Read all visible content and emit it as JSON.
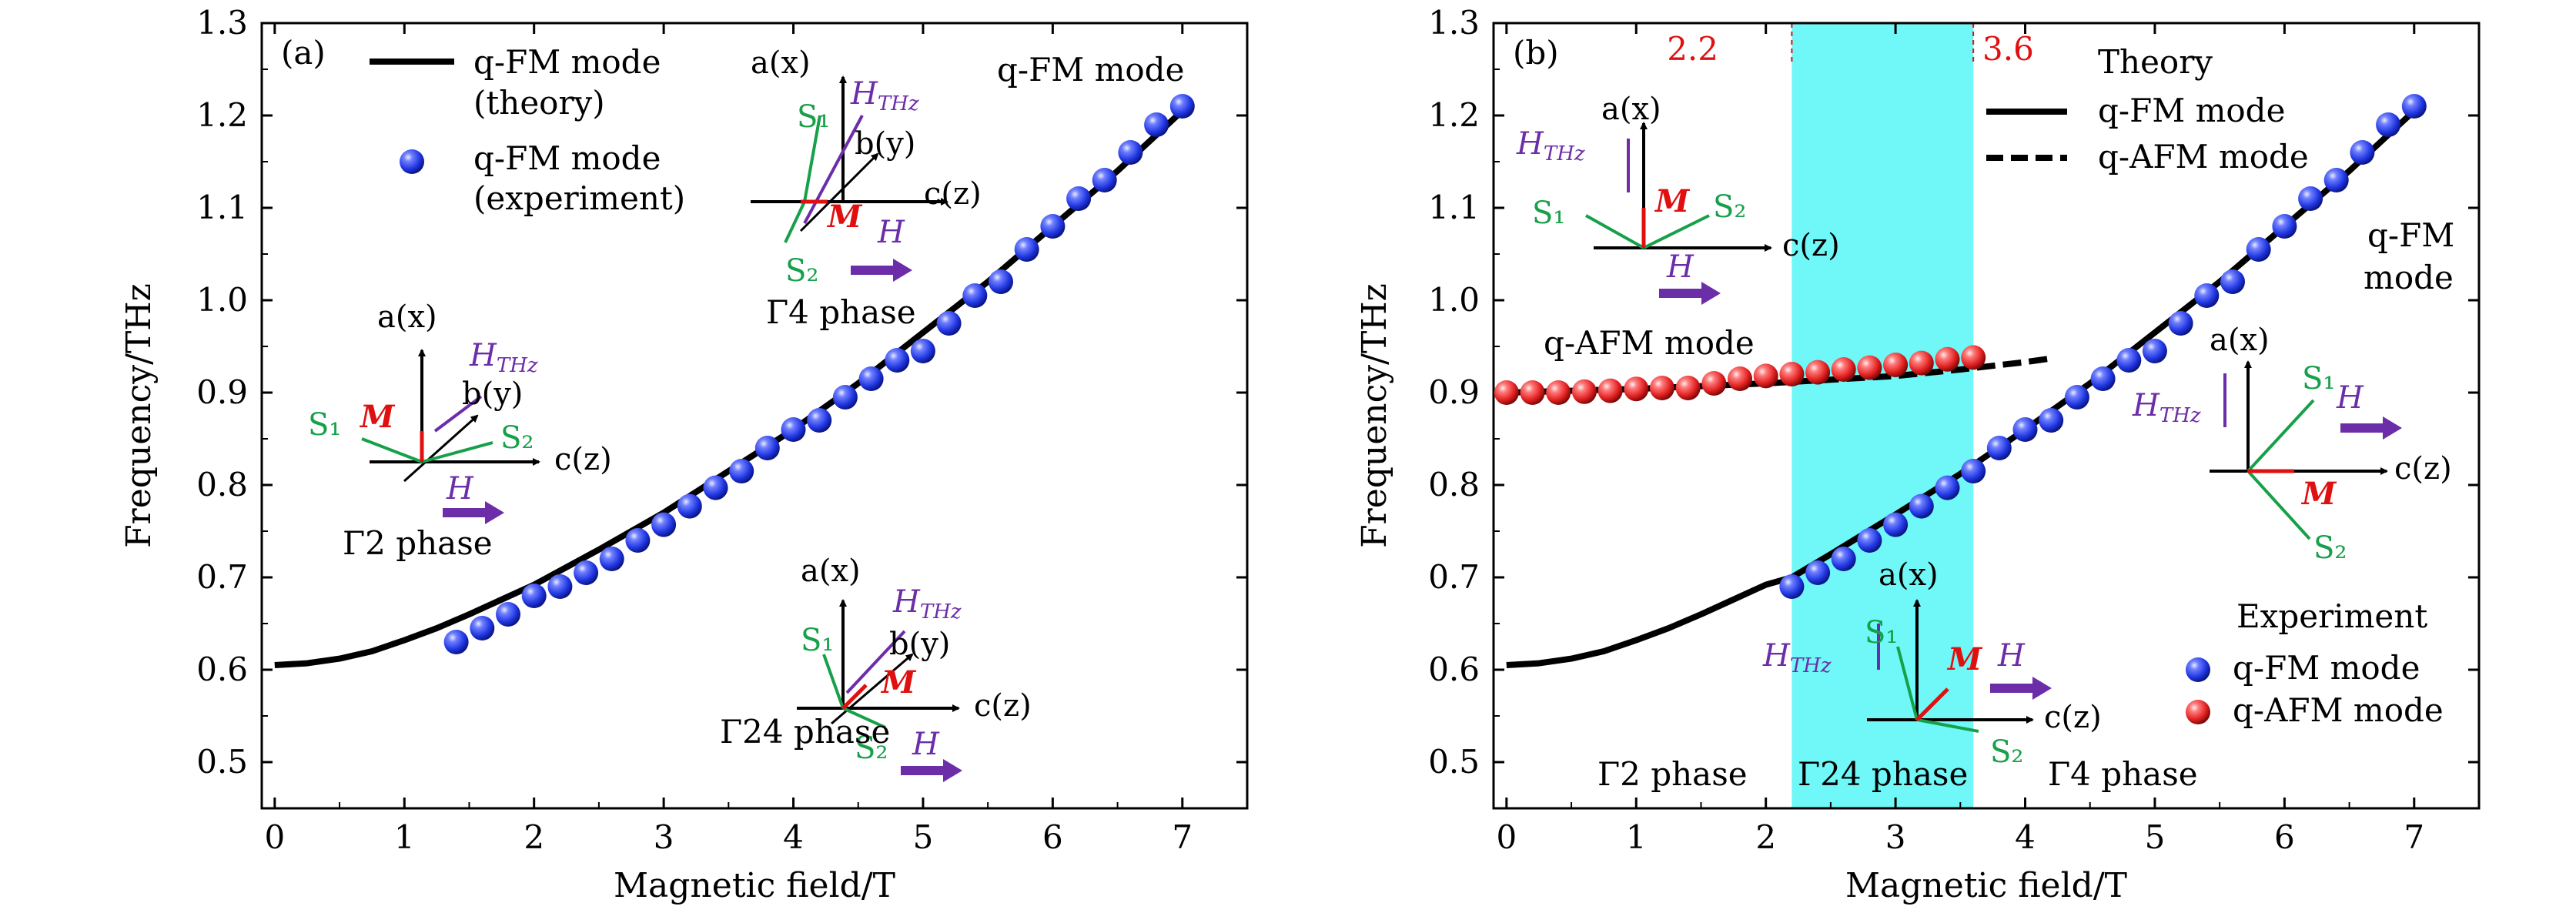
{
  "colors": {
    "theory": "#000000",
    "fm_marker": "#1f35e0",
    "afm_marker": "#e01f1f",
    "highlight": "#70f7f7",
    "green": "#17a04a",
    "purple": "#6c2ea8",
    "red": "#e01010"
  },
  "chart_data": [
    {
      "type": "scatter",
      "panel_label": "(a)",
      "xlabel": "Magnetic field/T",
      "ylabel": "Frequency/THz",
      "xlim": [
        -0.1,
        7.5
      ],
      "ylim": [
        0.45,
        1.3
      ],
      "xticks": [
        "0",
        "1",
        "2",
        "3",
        "4",
        "5",
        "6",
        "7"
      ],
      "yticks": [
        "0.5",
        "0.6",
        "0.7",
        "0.8",
        "0.9",
        "1.0",
        "1.1",
        "1.2",
        "1.3"
      ],
      "legend": [
        {
          "label": "q-FM mode",
          "label2": "(theory)",
          "marker": "line"
        },
        {
          "label": "q-FM mode",
          "label2": "(experiment)",
          "marker": "ball"
        }
      ],
      "annotations": [
        "q-FM mode",
        "Γ4 phase",
        "Γ2 phase",
        "Γ24 phase"
      ],
      "series": [
        {
          "name": "q-FM mode (theory)",
          "kind": "line",
          "x": [
            0,
            0.25,
            0.5,
            0.75,
            1.0,
            1.25,
            1.5,
            1.75,
            2.0,
            2.5,
            3.0,
            3.5,
            4.0,
            4.5,
            5.0,
            5.5,
            6.0,
            6.5,
            7.0
          ],
          "y": [
            0.605,
            0.607,
            0.612,
            0.62,
            0.632,
            0.645,
            0.66,
            0.676,
            0.692,
            0.73,
            0.77,
            0.815,
            0.86,
            0.91,
            0.965,
            1.02,
            1.08,
            1.14,
            1.205
          ]
        },
        {
          "name": "q-FM mode (experiment)",
          "kind": "points",
          "x": [
            1.4,
            1.6,
            1.8,
            2.0,
            2.2,
            2.4,
            2.6,
            2.8,
            3.0,
            3.2,
            3.4,
            3.6,
            3.8,
            4.0,
            4.2,
            4.4,
            4.6,
            4.8,
            5.0,
            5.2,
            5.4,
            5.6,
            5.8,
            6.0,
            6.2,
            6.4,
            6.6,
            6.8,
            7.0
          ],
          "y": [
            0.63,
            0.645,
            0.66,
            0.68,
            0.69,
            0.705,
            0.72,
            0.74,
            0.757,
            0.777,
            0.797,
            0.815,
            0.84,
            0.86,
            0.87,
            0.895,
            0.915,
            0.935,
            0.945,
            0.975,
            1.005,
            1.02,
            1.055,
            1.08,
            1.11,
            1.13,
            1.16,
            1.19,
            1.21
          ]
        }
      ]
    },
    {
      "type": "scatter",
      "panel_label": "(b)",
      "xlabel": "Magnetic field/T",
      "ylabel": "Frequency/THz",
      "xlim": [
        -0.1,
        7.5
      ],
      "ylim": [
        0.45,
        1.3
      ],
      "xticks": [
        "0",
        "1",
        "2",
        "3",
        "4",
        "5",
        "6",
        "7"
      ],
      "yticks": [
        "0.5",
        "0.6",
        "0.7",
        "0.8",
        "0.9",
        "1.0",
        "1.1",
        "1.2",
        "1.3"
      ],
      "shaded_region": {
        "x_start": 2.2,
        "x_end": 3.6,
        "start_label": "2.2",
        "end_label": "3.6"
      },
      "legend_theory": {
        "title": "Theory",
        "entries": [
          "q-FM mode",
          "q-AFM mode"
        ]
      },
      "legend_experiment": {
        "title": "Experiment",
        "entries": [
          "q-FM mode",
          "q-AFM mode"
        ]
      },
      "annotations": [
        "q-AFM mode",
        "q-FM",
        "mode",
        "Γ2 phase",
        "Γ24 phase",
        "Γ4 phase"
      ],
      "series": [
        {
          "name": "q-FM mode (theory)",
          "kind": "line",
          "x": [
            0,
            0.25,
            0.5,
            0.75,
            1.0,
            1.25,
            1.5,
            1.75,
            2.0,
            2.2,
            2.5,
            3.0,
            3.5,
            4.0,
            4.5,
            5.0,
            5.5,
            6.0,
            6.5,
            7.0
          ],
          "y": [
            0.605,
            0.607,
            0.612,
            0.62,
            0.632,
            0.645,
            0.66,
            0.676,
            0.692,
            0.7,
            0.725,
            0.768,
            0.812,
            0.86,
            0.91,
            0.965,
            1.02,
            1.08,
            1.14,
            1.205
          ]
        },
        {
          "name": "q-AFM mode (theory)",
          "kind": "dashed",
          "x": [
            0,
            0.5,
            1.0,
            1.5,
            2.0,
            2.5,
            3.0,
            3.5,
            4.0,
            4.2
          ],
          "y": [
            0.9,
            0.902,
            0.904,
            0.907,
            0.91,
            0.914,
            0.918,
            0.925,
            0.933,
            0.937
          ]
        },
        {
          "name": "q-FM mode (experiment)",
          "kind": "points",
          "x": [
            2.2,
            2.4,
            2.6,
            2.8,
            3.0,
            3.2,
            3.4,
            3.6,
            3.8,
            4.0,
            4.2,
            4.4,
            4.6,
            4.8,
            5.0,
            5.2,
            5.4,
            5.6,
            5.8,
            6.0,
            6.2,
            6.4,
            6.6,
            6.8,
            7.0
          ],
          "y": [
            0.69,
            0.705,
            0.72,
            0.74,
            0.757,
            0.777,
            0.797,
            0.815,
            0.84,
            0.86,
            0.87,
            0.895,
            0.915,
            0.935,
            0.945,
            0.975,
            1.005,
            1.02,
            1.055,
            1.08,
            1.11,
            1.13,
            1.16,
            1.19,
            1.21
          ]
        },
        {
          "name": "q-AFM mode (experiment)",
          "kind": "points",
          "x": [
            0,
            0.2,
            0.4,
            0.6,
            0.8,
            1.0,
            1.2,
            1.4,
            1.6,
            1.8,
            2.0,
            2.2,
            2.4,
            2.6,
            2.8,
            3.0,
            3.2,
            3.4,
            3.6
          ],
          "y": [
            0.9,
            0.9,
            0.9,
            0.901,
            0.902,
            0.904,
            0.905,
            0.905,
            0.91,
            0.915,
            0.918,
            0.92,
            0.922,
            0.925,
            0.927,
            0.93,
            0.932,
            0.936,
            0.938
          ]
        }
      ]
    }
  ],
  "vector_labels": {
    "a": "a(x)",
    "b": "b(y)",
    "c": "c(z)",
    "S1": "S₁",
    "S2": "S₂",
    "M": "M",
    "H": "H",
    "HTHz": "H",
    "HTHz_sub": "THz"
  }
}
